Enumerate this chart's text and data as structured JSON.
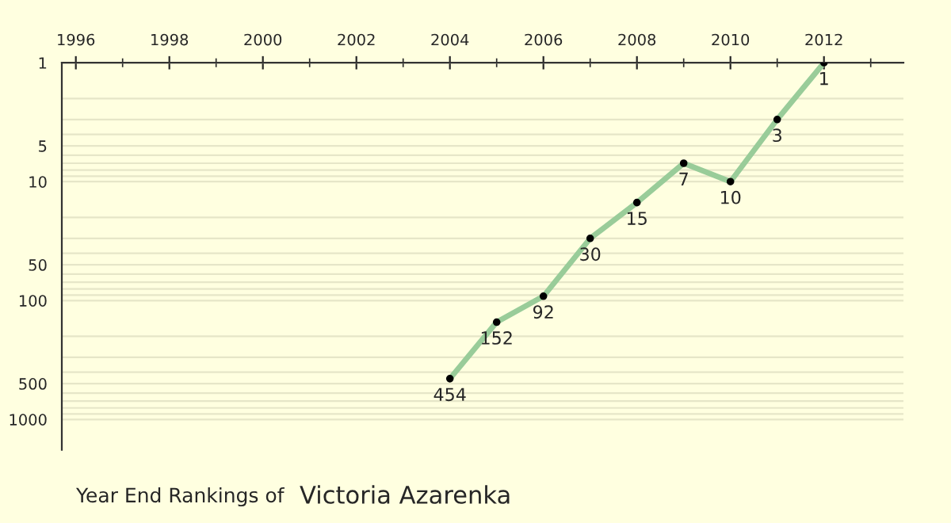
{
  "chart_data": {
    "type": "line",
    "title": "Year End Rankings of",
    "subtitle": "Victoria Azarenka",
    "x": [
      2004,
      2005,
      2006,
      2007,
      2008,
      2009,
      2010,
      2011,
      2012
    ],
    "series": [
      {
        "color": "#99cc99",
        "values": [
          454,
          152,
          92,
          30,
          15,
          7,
          10,
          3,
          1
        ]
      }
    ],
    "xlim": [
      1995.7,
      2013.7
    ],
    "xticks": [
      1996,
      1998,
      2000,
      2002,
      2004,
      2006,
      2008,
      2010,
      2012
    ],
    "ylim": [
      1800,
      1
    ],
    "yticks": [
      1,
      5,
      10,
      50,
      100,
      500,
      1000
    ],
    "log": "y",
    "grid": "y",
    "marker": "circle",
    "line_style": "solid",
    "data_labels": true
  }
}
